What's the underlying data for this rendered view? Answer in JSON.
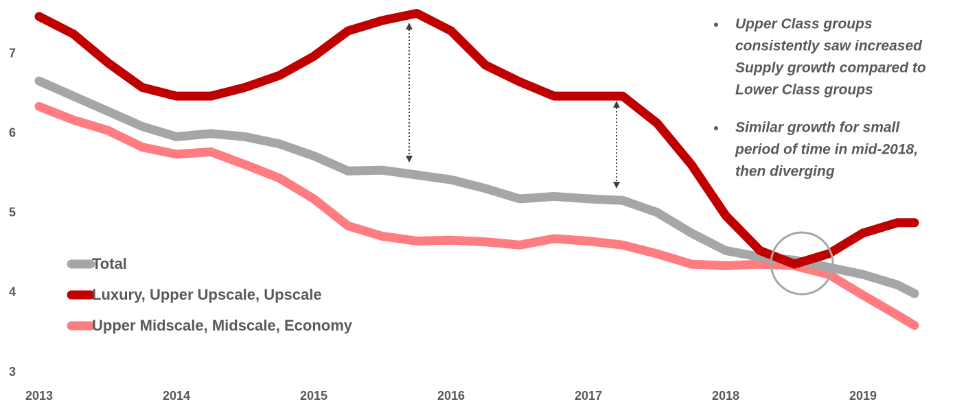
{
  "chart_data": {
    "type": "line",
    "x": [
      2013,
      2013.25,
      2013.5,
      2013.75,
      2014,
      2014.25,
      2014.5,
      2014.75,
      2015,
      2015.25,
      2015.5,
      2015.75,
      2016,
      2016.25,
      2016.5,
      2016.75,
      2017,
      2017.25,
      2017.5,
      2017.75,
      2018,
      2018.25,
      2018.5,
      2018.75,
      2019,
      2019.25,
      2019.375
    ],
    "series": [
      {
        "name": "Total",
        "color": "#a6a6a6",
        "values": [
          6.66,
          6.47,
          6.28,
          6.09,
          5.96,
          6.0,
          5.96,
          5.87,
          5.72,
          5.53,
          5.54,
          5.48,
          5.42,
          5.31,
          5.18,
          5.21,
          5.18,
          5.16,
          5.01,
          4.75,
          4.53,
          4.45,
          4.41,
          4.32,
          4.23,
          4.1,
          3.99
        ]
      },
      {
        "name": "Luxury, Upper Upscale, Upscale",
        "color": "#c00000",
        "values": [
          7.47,
          7.25,
          6.89,
          6.58,
          6.47,
          6.47,
          6.58,
          6.73,
          6.97,
          7.29,
          7.42,
          7.51,
          7.29,
          6.86,
          6.65,
          6.47,
          6.47,
          6.47,
          6.13,
          5.61,
          4.97,
          4.53,
          4.36,
          4.49,
          4.75,
          4.88,
          4.88
        ]
      },
      {
        "name": "Upper Midscale, Midscale, Economy",
        "color": "#ff7c80",
        "values": [
          6.34,
          6.17,
          6.04,
          5.83,
          5.74,
          5.77,
          5.61,
          5.44,
          5.18,
          4.84,
          4.71,
          4.65,
          4.66,
          4.64,
          4.6,
          4.68,
          4.65,
          4.6,
          4.49,
          4.36,
          4.34,
          4.36,
          4.34,
          4.23,
          3.97,
          3.72,
          3.59
        ]
      }
    ],
    "xlim": [
      2013,
      2019.5
    ],
    "xticks": [
      2013,
      2014,
      2015,
      2016,
      2017,
      2018,
      2019
    ],
    "ylim": [
      3,
      7.6
    ],
    "yticks": [
      3,
      4,
      5,
      6,
      7
    ],
    "grid": false,
    "legend": "lower left",
    "annotations": [
      [
        "Upper Class groups",
        "consistently saw increased",
        "Supply growth compared to",
        "Lower Class groups"
      ],
      [
        "Similar growth for small",
        "period of time in mid-2018,",
        "then diverging"
      ]
    ]
  }
}
